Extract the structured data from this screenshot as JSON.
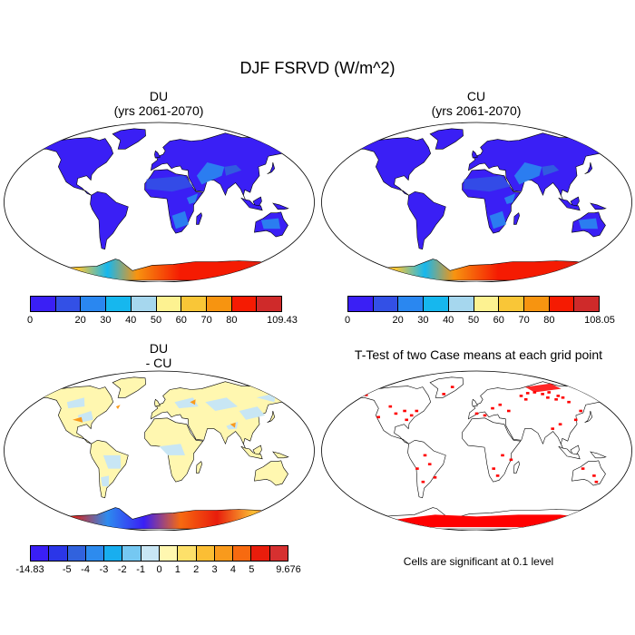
{
  "main_title": "DJF FSRVD (W/m^2)",
  "panels": [
    {
      "id": "du",
      "title": "DU",
      "subtitle": "(yrs 2061-2070)"
    },
    {
      "id": "cu",
      "title": "CU",
      "subtitle": "(yrs 2061-2070)"
    },
    {
      "id": "diff",
      "title": "DU",
      "subtitle": "- CU"
    },
    {
      "id": "ttest",
      "title": "T-Test of two Case means at each grid point",
      "subtitle": ""
    }
  ],
  "colorbars": {
    "du": {
      "colors": [
        "#3a1ff5",
        "#3350e6",
        "#2a87f0",
        "#16b7ee",
        "#a6d7ee",
        "#fdf291",
        "#f9c637",
        "#f79410",
        "#f51b02",
        "#cf2a2a"
      ],
      "labels": [
        "0",
        "20",
        "30",
        "40",
        "50",
        "60",
        "70",
        "80",
        "109.43"
      ],
      "boundaries": [
        "0",
        "",
        "20",
        "30",
        "40",
        "50",
        "60",
        "70",
        "80",
        "",
        "109.43"
      ]
    },
    "cu": {
      "colors": [
        "#3a1ff5",
        "#3350e6",
        "#2a87f0",
        "#16b7ee",
        "#a6d7ee",
        "#fdf291",
        "#f9c637",
        "#f79410",
        "#f51b02",
        "#cf2a2a"
      ],
      "labels": [
        "0",
        "20",
        "30",
        "40",
        "50",
        "60",
        "70",
        "80",
        "108.05"
      ],
      "boundaries": [
        "0",
        "",
        "20",
        "30",
        "40",
        "50",
        "60",
        "70",
        "80",
        "",
        "108.05"
      ]
    },
    "diff": {
      "colors": [
        "#3a1ff5",
        "#2b36e8",
        "#3162dd",
        "#2d8bee",
        "#18aeef",
        "#75c8f2",
        "#c8e6f4",
        "#fff7b0",
        "#fde06a",
        "#fbbe34",
        "#f99a1c",
        "#f76a10",
        "#e81d0c",
        "#d63030"
      ],
      "boundaries": [
        "-14.83",
        "",
        "-5",
        "-4",
        "-3",
        "-2",
        "-1",
        "0",
        "1",
        "2",
        "3",
        "4",
        "5",
        "",
        "9.676"
      ]
    }
  },
  "significance_note": "Cells are significant at 0.1 level",
  "map_colors": {
    "ocean": "#ffffff",
    "land_low": "#3a1ff5",
    "land_mid": "#3350e6",
    "antarctic_hot": "#f51b02",
    "sig": "#ff0000"
  }
}
